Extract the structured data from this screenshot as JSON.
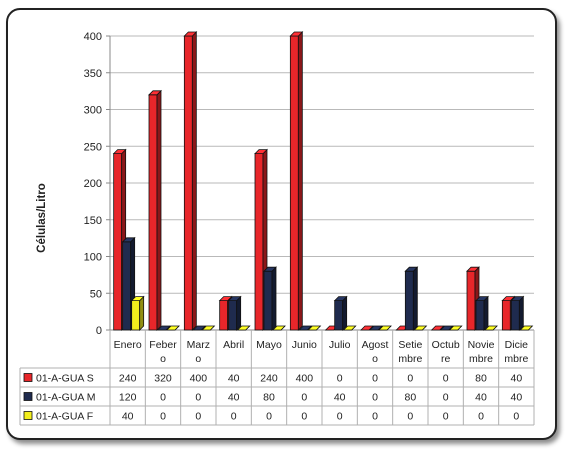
{
  "chart_data": {
    "type": "bar",
    "ylabel": "Células/Litro",
    "ylim": [
      0,
      400
    ],
    "yticks": [
      0,
      50,
      100,
      150,
      200,
      250,
      300,
      350,
      400
    ],
    "categories": [
      [
        "Enero"
      ],
      [
        "Feber",
        "o"
      ],
      [
        "Marz",
        "o"
      ],
      [
        "Abril"
      ],
      [
        "Mayo"
      ],
      [
        "Junio"
      ],
      [
        "Julio"
      ],
      [
        "Agost",
        "o"
      ],
      [
        "Setie",
        "mbre"
      ],
      [
        "Octub",
        "re"
      ],
      [
        "Novie",
        "mbre"
      ],
      [
        "Dicie",
        "mbre"
      ]
    ],
    "series": [
      {
        "name": "01-A-GUA S",
        "color": "#e8262a",
        "values": [
          240,
          320,
          400,
          40,
          240,
          400,
          0,
          0,
          0,
          0,
          80,
          40
        ]
      },
      {
        "name": "01-A-GUA M",
        "color": "#1f2b4e",
        "values": [
          120,
          0,
          0,
          40,
          80,
          0,
          40,
          0,
          80,
          0,
          40,
          40
        ]
      },
      {
        "name": "01-A-GUA F",
        "color": "#f2ee1d",
        "values": [
          40,
          0,
          0,
          0,
          0,
          0,
          0,
          0,
          0,
          0,
          0,
          0
        ]
      }
    ],
    "grid": true,
    "legend": "data table"
  }
}
